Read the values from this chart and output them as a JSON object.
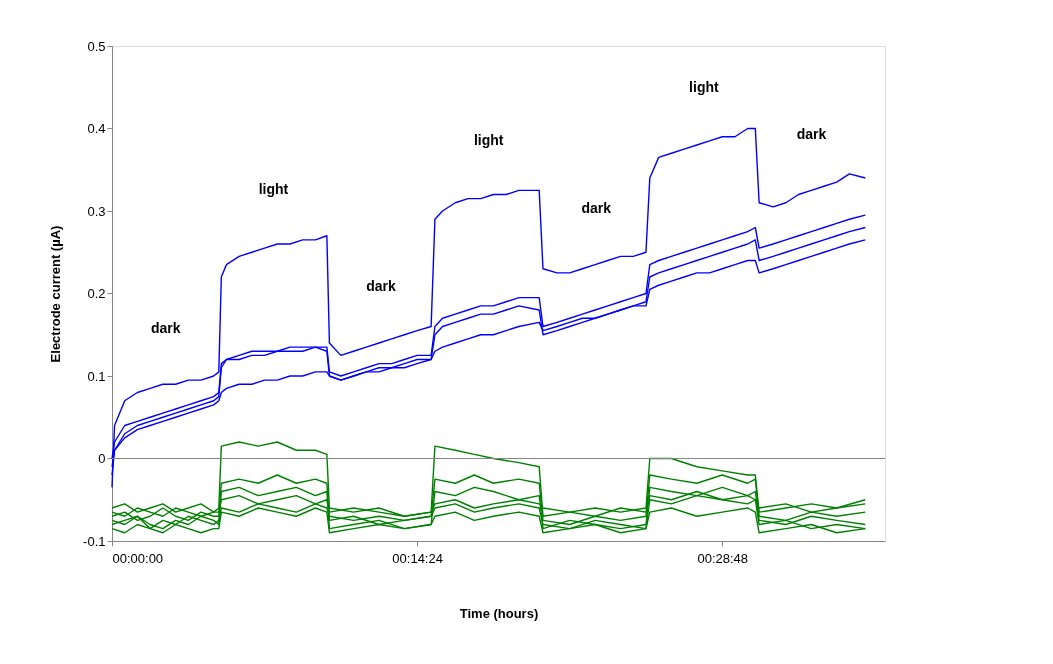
{
  "chart_data": {
    "type": "line",
    "xlabel": "Time (hours)",
    "ylabel": "Electrode current (µA)",
    "xlim": [
      0,
      0.608
    ],
    "ylim": [
      -0.1,
      0.5
    ],
    "xticks": [
      {
        "value": 0,
        "label": "00:00:00"
      },
      {
        "value": 0.24,
        "label": "00:14:24"
      },
      {
        "value": 0.48,
        "label": "00:28:48"
      }
    ],
    "yticks": [
      -0.1,
      0,
      0.1,
      0.2,
      0.3,
      0.4,
      0.5
    ],
    "grid": false,
    "legend": false,
    "marker": "none",
    "line_style": "solid",
    "ref_lines": [
      {
        "axis": "y",
        "value": 0,
        "label": null,
        "color": "#868686"
      }
    ],
    "annotations": [
      "dark",
      "light",
      "dark",
      "light",
      "dark",
      "light",
      "dark"
    ],
    "x": [
      0,
      0.002,
      0.01,
      0.02,
      0.03,
      0.04,
      0.05,
      0.06,
      0.07,
      0.08,
      0.084,
      0.086,
      0.09,
      0.1,
      0.11,
      0.12,
      0.13,
      0.14,
      0.15,
      0.16,
      0.169,
      0.171,
      0.18,
      0.19,
      0.2,
      0.21,
      0.22,
      0.23,
      0.24,
      0.251,
      0.254,
      0.26,
      0.27,
      0.28,
      0.29,
      0.3,
      0.31,
      0.32,
      0.336,
      0.339,
      0.35,
      0.36,
      0.37,
      0.38,
      0.39,
      0.4,
      0.41,
      0.42,
      0.423,
      0.43,
      0.44,
      0.45,
      0.46,
      0.47,
      0.48,
      0.49,
      0.5,
      0.506,
      0.509,
      0.52,
      0.53,
      0.54,
      0.55,
      0.56,
      0.57,
      0.58,
      0.5925
    ],
    "series": [
      {
        "color": "#0000ff",
        "values": [
          -0.035,
          0.04,
          0.07,
          0.08,
          0.085,
          0.09,
          0.09,
          0.095,
          0.095,
          0.1,
          0.105,
          0.22,
          0.235,
          0.245,
          0.25,
          0.255,
          0.26,
          0.26,
          0.265,
          0.265,
          0.27,
          0.14,
          0.125,
          0.13,
          0.135,
          0.14,
          0.145,
          0.15,
          0.155,
          0.16,
          0.29,
          0.3,
          0.31,
          0.315,
          0.315,
          0.32,
          0.32,
          0.325,
          0.325,
          0.23,
          0.225,
          0.225,
          0.23,
          0.235,
          0.24,
          0.245,
          0.245,
          0.25,
          0.34,
          0.365,
          0.37,
          0.375,
          0.38,
          0.385,
          0.39,
          0.39,
          0.4,
          0.4,
          0.31,
          0.305,
          0.31,
          0.32,
          0.325,
          0.33,
          0.335,
          0.345,
          0.34
        ]
      },
      {
        "color": "#0000ff",
        "values": [
          0.0,
          0.02,
          0.04,
          0.045,
          0.05,
          0.055,
          0.06,
          0.065,
          0.07,
          0.075,
          0.08,
          0.115,
          0.12,
          0.125,
          0.13,
          0.13,
          0.13,
          0.135,
          0.135,
          0.135,
          0.135,
          0.105,
          0.1,
          0.105,
          0.11,
          0.115,
          0.115,
          0.12,
          0.125,
          0.125,
          0.16,
          0.17,
          0.175,
          0.18,
          0.185,
          0.185,
          0.19,
          0.195,
          0.195,
          0.16,
          0.165,
          0.17,
          0.175,
          0.18,
          0.185,
          0.19,
          0.195,
          0.2,
          0.235,
          0.24,
          0.245,
          0.25,
          0.255,
          0.26,
          0.265,
          0.27,
          0.275,
          0.28,
          0.255,
          0.26,
          0.265,
          0.27,
          0.275,
          0.28,
          0.285,
          0.29,
          0.295
        ]
      },
      {
        "color": "#0000ff",
        "values": [
          -0.01,
          0.01,
          0.03,
          0.04,
          0.045,
          0.05,
          0.055,
          0.06,
          0.065,
          0.07,
          0.075,
          0.11,
          0.12,
          0.12,
          0.125,
          0.125,
          0.13,
          0.13,
          0.13,
          0.135,
          0.13,
          0.1,
          0.095,
          0.1,
          0.105,
          0.11,
          0.11,
          0.115,
          0.12,
          0.12,
          0.15,
          0.16,
          0.165,
          0.17,
          0.175,
          0.175,
          0.18,
          0.185,
          0.18,
          0.15,
          0.155,
          0.16,
          0.165,
          0.17,
          0.175,
          0.18,
          0.185,
          0.19,
          0.22,
          0.225,
          0.23,
          0.235,
          0.24,
          0.245,
          0.25,
          0.255,
          0.26,
          0.265,
          0.24,
          0.245,
          0.25,
          0.255,
          0.26,
          0.265,
          0.27,
          0.275,
          0.28
        ]
      },
      {
        "color": "#0000ff",
        "values": [
          -0.02,
          0.01,
          0.025,
          0.035,
          0.04,
          0.045,
          0.05,
          0.055,
          0.06,
          0.065,
          0.07,
          0.08,
          0.085,
          0.09,
          0.09,
          0.095,
          0.095,
          0.1,
          0.1,
          0.105,
          0.105,
          0.1,
          0.095,
          0.1,
          0.105,
          0.105,
          0.11,
          0.11,
          0.115,
          0.12,
          0.13,
          0.135,
          0.14,
          0.145,
          0.15,
          0.15,
          0.155,
          0.16,
          0.165,
          0.155,
          0.16,
          0.165,
          0.17,
          0.17,
          0.175,
          0.18,
          0.185,
          0.185,
          0.205,
          0.21,
          0.215,
          0.22,
          0.225,
          0.225,
          0.23,
          0.235,
          0.24,
          0.24,
          0.225,
          0.23,
          0.235,
          0.24,
          0.245,
          0.25,
          0.255,
          0.26,
          0.265
        ]
      },
      {
        "color": "#008000",
        "x": [
          0,
          0.01,
          0.02,
          0.03,
          0.04,
          0.05,
          0.06,
          0.07,
          0.08,
          0.084,
          0.086,
          0.1,
          0.115,
          0.13,
          0.145,
          0.16,
          0.169,
          0.171,
          0.19,
          0.21,
          0.23,
          0.251,
          0.254,
          0.27,
          0.285,
          0.3,
          0.32,
          0.336,
          0.339,
          0.36,
          0.38,
          0.4,
          0.42,
          0.423,
          0.44,
          0.46,
          0.48,
          0.5,
          0.506,
          0.509,
          0.53,
          0.55,
          0.57,
          0.5925
        ],
        "values": [
          -0.06,
          -0.055,
          -0.065,
          -0.06,
          -0.055,
          -0.065,
          -0.06,
          -0.055,
          -0.065,
          -0.06,
          0.015,
          0.02,
          0.015,
          0.02,
          0.01,
          0.01,
          0.005,
          -0.06,
          -0.065,
          -0.06,
          -0.07,
          -0.065,
          0.015,
          0.01,
          0.005,
          0.0,
          -0.005,
          -0.01,
          -0.07,
          -0.065,
          -0.06,
          -0.065,
          -0.06,
          0.0,
          0.0,
          -0.01,
          -0.015,
          -0.02,
          -0.02,
          -0.065,
          -0.06,
          -0.055,
          -0.06,
          -0.05
        ]
      },
      {
        "color": "#008000",
        "x": [
          0,
          0.01,
          0.02,
          0.03,
          0.04,
          0.05,
          0.06,
          0.07,
          0.08,
          0.084,
          0.086,
          0.1,
          0.115,
          0.13,
          0.145,
          0.16,
          0.169,
          0.171,
          0.19,
          0.21,
          0.23,
          0.251,
          0.254,
          0.27,
          0.285,
          0.3,
          0.32,
          0.336,
          0.339,
          0.36,
          0.38,
          0.4,
          0.42,
          0.423,
          0.44,
          0.46,
          0.48,
          0.5,
          0.506,
          0.509,
          0.53,
          0.55,
          0.57,
          0.5925
        ],
        "values": [
          -0.07,
          -0.065,
          -0.075,
          -0.07,
          -0.06,
          -0.07,
          -0.075,
          -0.065,
          -0.07,
          -0.07,
          -0.03,
          -0.025,
          -0.03,
          -0.02,
          -0.03,
          -0.025,
          -0.03,
          -0.075,
          -0.07,
          -0.08,
          -0.075,
          -0.07,
          -0.025,
          -0.03,
          -0.02,
          -0.03,
          -0.025,
          -0.03,
          -0.075,
          -0.08,
          -0.07,
          -0.075,
          -0.07,
          -0.02,
          -0.025,
          -0.03,
          -0.02,
          -0.03,
          -0.025,
          -0.07,
          -0.075,
          -0.065,
          -0.07,
          -0.065
        ]
      },
      {
        "color": "#008000",
        "x": [
          0,
          0.01,
          0.02,
          0.03,
          0.04,
          0.05,
          0.06,
          0.07,
          0.08,
          0.084,
          0.086,
          0.1,
          0.115,
          0.13,
          0.145,
          0.16,
          0.169,
          0.171,
          0.19,
          0.21,
          0.23,
          0.251,
          0.254,
          0.27,
          0.285,
          0.3,
          0.32,
          0.336,
          0.339,
          0.36,
          0.38,
          0.4,
          0.42,
          0.423,
          0.44,
          0.46,
          0.48,
          0.5,
          0.506,
          0.509,
          0.53,
          0.55,
          0.57,
          0.5925
        ],
        "values": [
          -0.08,
          -0.075,
          -0.07,
          -0.08,
          -0.085,
          -0.075,
          -0.08,
          -0.07,
          -0.075,
          -0.08,
          -0.04,
          -0.035,
          -0.045,
          -0.04,
          -0.035,
          -0.045,
          -0.04,
          -0.085,
          -0.08,
          -0.075,
          -0.085,
          -0.08,
          -0.04,
          -0.045,
          -0.035,
          -0.04,
          -0.05,
          -0.045,
          -0.085,
          -0.075,
          -0.08,
          -0.085,
          -0.08,
          -0.035,
          -0.04,
          -0.045,
          -0.035,
          -0.045,
          -0.04,
          -0.075,
          -0.08,
          -0.07,
          -0.075,
          -0.08
        ]
      },
      {
        "color": "#008000",
        "x": [
          0,
          0.01,
          0.02,
          0.03,
          0.04,
          0.05,
          0.06,
          0.07,
          0.08,
          0.084,
          0.086,
          0.1,
          0.115,
          0.13,
          0.145,
          0.16,
          0.169,
          0.171,
          0.19,
          0.21,
          0.23,
          0.251,
          0.254,
          0.27,
          0.285,
          0.3,
          0.32,
          0.336,
          0.339,
          0.36,
          0.38,
          0.4,
          0.42,
          0.423,
          0.44,
          0.46,
          0.48,
          0.5,
          0.506,
          0.509,
          0.53,
          0.55,
          0.57,
          0.5925
        ],
        "values": [
          -0.065,
          -0.07,
          -0.06,
          -0.065,
          -0.07,
          -0.06,
          -0.065,
          -0.07,
          -0.065,
          -0.065,
          -0.05,
          -0.045,
          -0.055,
          -0.05,
          -0.045,
          -0.055,
          -0.05,
          -0.065,
          -0.06,
          -0.065,
          -0.07,
          -0.065,
          -0.055,
          -0.05,
          -0.06,
          -0.055,
          -0.05,
          -0.055,
          -0.06,
          -0.065,
          -0.07,
          -0.06,
          -0.065,
          -0.045,
          -0.05,
          -0.04,
          -0.05,
          -0.045,
          -0.05,
          -0.06,
          -0.055,
          -0.065,
          -0.06,
          -0.055
        ]
      },
      {
        "color": "#008000",
        "x": [
          0,
          0.01,
          0.02,
          0.03,
          0.04,
          0.05,
          0.06,
          0.07,
          0.08,
          0.084,
          0.086,
          0.1,
          0.115,
          0.13,
          0.145,
          0.16,
          0.169,
          0.171,
          0.19,
          0.21,
          0.23,
          0.251,
          0.254,
          0.27,
          0.285,
          0.3,
          0.32,
          0.336,
          0.339,
          0.36,
          0.38,
          0.4,
          0.42,
          0.423,
          0.44,
          0.46,
          0.48,
          0.5,
          0.506,
          0.509,
          0.53,
          0.55,
          0.57,
          0.5925
        ],
        "values": [
          -0.075,
          -0.08,
          -0.07,
          -0.085,
          -0.075,
          -0.08,
          -0.07,
          -0.075,
          -0.08,
          -0.075,
          -0.06,
          -0.065,
          -0.055,
          -0.06,
          -0.065,
          -0.055,
          -0.06,
          -0.07,
          -0.075,
          -0.07,
          -0.075,
          -0.07,
          -0.06,
          -0.055,
          -0.065,
          -0.06,
          -0.055,
          -0.06,
          -0.08,
          -0.085,
          -0.075,
          -0.08,
          -0.085,
          -0.05,
          -0.055,
          -0.045,
          -0.05,
          -0.055,
          -0.05,
          -0.08,
          -0.075,
          -0.085,
          -0.08,
          -0.085
        ]
      },
      {
        "color": "#008000",
        "x": [
          0,
          0.01,
          0.02,
          0.03,
          0.04,
          0.05,
          0.06,
          0.07,
          0.08,
          0.084,
          0.086,
          0.1,
          0.115,
          0.13,
          0.145,
          0.16,
          0.169,
          0.171,
          0.19,
          0.21,
          0.23,
          0.251,
          0.254,
          0.27,
          0.285,
          0.3,
          0.32,
          0.336,
          0.339,
          0.36,
          0.38,
          0.4,
          0.42,
          0.423,
          0.44,
          0.46,
          0.48,
          0.5,
          0.506,
          0.509,
          0.53,
          0.55,
          0.57,
          0.5925
        ],
        "values": [
          -0.085,
          -0.09,
          -0.08,
          -0.085,
          -0.09,
          -0.08,
          -0.085,
          -0.09,
          -0.085,
          -0.085,
          -0.065,
          -0.07,
          -0.06,
          -0.065,
          -0.07,
          -0.06,
          -0.065,
          -0.09,
          -0.085,
          -0.08,
          -0.085,
          -0.08,
          -0.07,
          -0.065,
          -0.075,
          -0.07,
          -0.065,
          -0.07,
          -0.09,
          -0.085,
          -0.08,
          -0.09,
          -0.085,
          -0.065,
          -0.06,
          -0.07,
          -0.065,
          -0.06,
          -0.065,
          -0.09,
          -0.085,
          -0.08,
          -0.09,
          -0.085
        ]
      }
    ]
  }
}
